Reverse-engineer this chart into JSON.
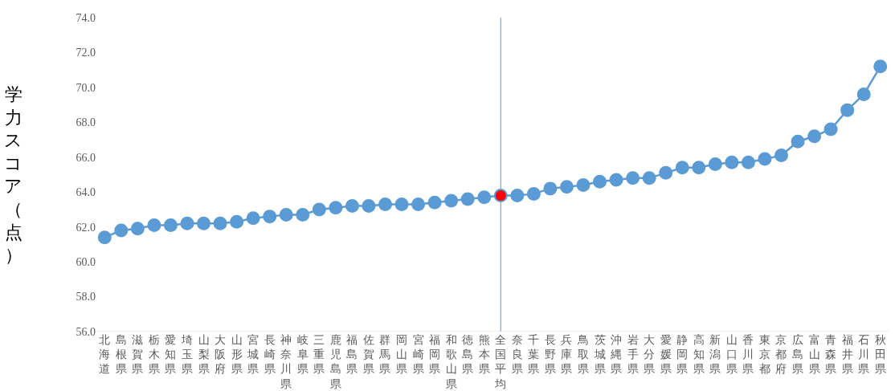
{
  "chart_data": {
    "type": "line",
    "ylabel": "学力スコア（点）",
    "categories": [
      "北海道",
      "島根県",
      "滋賀県",
      "栃木県",
      "愛知県",
      "埼玉県",
      "山梨県",
      "大阪府",
      "山形県",
      "宮城県",
      "長崎県",
      "神奈川県",
      "岐阜県",
      "三重県",
      "鹿児島県",
      "福島県",
      "佐賀県",
      "群馬県",
      "岡山県",
      "宮崎県",
      "福岡県",
      "和歌山県",
      "徳島県",
      "熊本県",
      "全国平均",
      "奈良県",
      "千葉県",
      "長野県",
      "兵庫県",
      "鳥取県",
      "茨城県",
      "沖縄県",
      "岩手県",
      "大分県",
      "愛媛県",
      "静岡県",
      "高知県",
      "新潟県",
      "山口県",
      "香川県",
      "東京都",
      "京都府",
      "広島県",
      "富山県",
      "青森県",
      "福井県",
      "石川県",
      "秋田県"
    ],
    "series": [
      {
        "color": "#5b9bd5",
        "colors": [
          "#5b9bd5",
          "#5b9bd5",
          "#5b9bd5",
          "#5b9bd5",
          "#5b9bd5",
          "#5b9bd5",
          "#5b9bd5",
          "#5b9bd5",
          "#5b9bd5",
          "#5b9bd5",
          "#5b9bd5",
          "#5b9bd5",
          "#5b9bd5",
          "#5b9bd5",
          "#5b9bd5",
          "#5b9bd5",
          "#5b9bd5",
          "#5b9bd5",
          "#5b9bd5",
          "#5b9bd5",
          "#5b9bd5",
          "#5b9bd5",
          "#5b9bd5",
          "#5b9bd5",
          "#ff0000",
          "#5b9bd5",
          "#5b9bd5",
          "#5b9bd5",
          "#5b9bd5",
          "#5b9bd5",
          "#5b9bd5",
          "#5b9bd5",
          "#5b9bd5",
          "#5b9bd5",
          "#5b9bd5",
          "#5b9bd5",
          "#5b9bd5",
          "#5b9bd5",
          "#5b9bd5",
          "#5b9bd5",
          "#5b9bd5",
          "#5b9bd5",
          "#5b9bd5",
          "#5b9bd5",
          "#5b9bd5",
          "#5b9bd5",
          "#5b9bd5",
          "#5b9bd5"
        ],
        "values": [
          61.4,
          61.8,
          61.9,
          62.1,
          62.1,
          62.2,
          62.2,
          62.2,
          62.3,
          62.5,
          62.6,
          62.7,
          62.7,
          63.0,
          63.1,
          63.2,
          63.2,
          63.3,
          63.3,
          63.3,
          63.4,
          63.5,
          63.6,
          63.7,
          63.8,
          63.8,
          63.9,
          64.2,
          64.3,
          64.4,
          64.6,
          64.7,
          64.8,
          64.8,
          65.1,
          65.4,
          65.4,
          65.6,
          65.7,
          65.7,
          65.9,
          66.1,
          66.9,
          67.2,
          67.6,
          68.7,
          69.6,
          71.2
        ]
      }
    ],
    "ylim": [
      56,
      74
    ],
    "yticks": [
      {
        "value": 56,
        "label": "56.0"
      },
      {
        "value": 58,
        "label": "58.0"
      },
      {
        "value": 60,
        "label": "60.0"
      },
      {
        "value": 62,
        "label": "62.0"
      },
      {
        "value": 64,
        "label": "64.0"
      },
      {
        "value": 66,
        "label": "66.0"
      },
      {
        "value": 68,
        "label": "68.0"
      },
      {
        "value": 70,
        "label": "70.0"
      },
      {
        "value": 72,
        "label": "72.0"
      },
      {
        "value": 74,
        "label": "74.0"
      }
    ],
    "ref_lines": [
      {
        "axis": "x",
        "value": "全国平均",
        "color": "#5b9bd5"
      }
    ],
    "marker": "circle",
    "line_style": "solid",
    "grid": false,
    "legend": false
  }
}
